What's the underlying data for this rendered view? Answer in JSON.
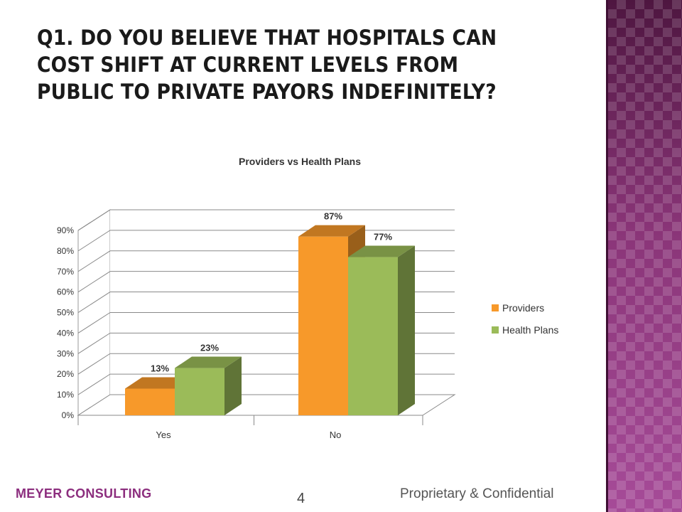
{
  "slide": {
    "title": "Q1.  Do you believe that hospitals can cost shift at current levels from public to private payors indefinitely?",
    "footer_company": "MEYER CONSULTING",
    "page_number": "4",
    "footer_note": "Proprietary & Confidential"
  },
  "colors": {
    "title": "#1a1a1a",
    "accent_band": "#8a3578",
    "footer_company": "#8c2e7e",
    "providers": "#f7992a",
    "health_plans": "#9bbb59"
  },
  "chart_data": {
    "type": "bar",
    "title": "Providers vs Health Plans",
    "categories": [
      "Yes",
      "No"
    ],
    "series": [
      {
        "name": "Providers",
        "values": [
          13,
          87
        ],
        "labels": [
          "13%",
          "87%"
        ],
        "color": "#f7992a"
      },
      {
        "name": "Health Plans",
        "values": [
          23,
          77
        ],
        "labels": [
          "23%",
          "77%"
        ],
        "color": "#9bbb59"
      }
    ],
    "yticks": [
      "0%",
      "10%",
      "20%",
      "30%",
      "40%",
      "50%",
      "60%",
      "70%",
      "80%",
      "90%"
    ],
    "ylim": [
      0,
      90
    ],
    "grid": true,
    "legend": "right",
    "style": "3d-clustered-column"
  }
}
